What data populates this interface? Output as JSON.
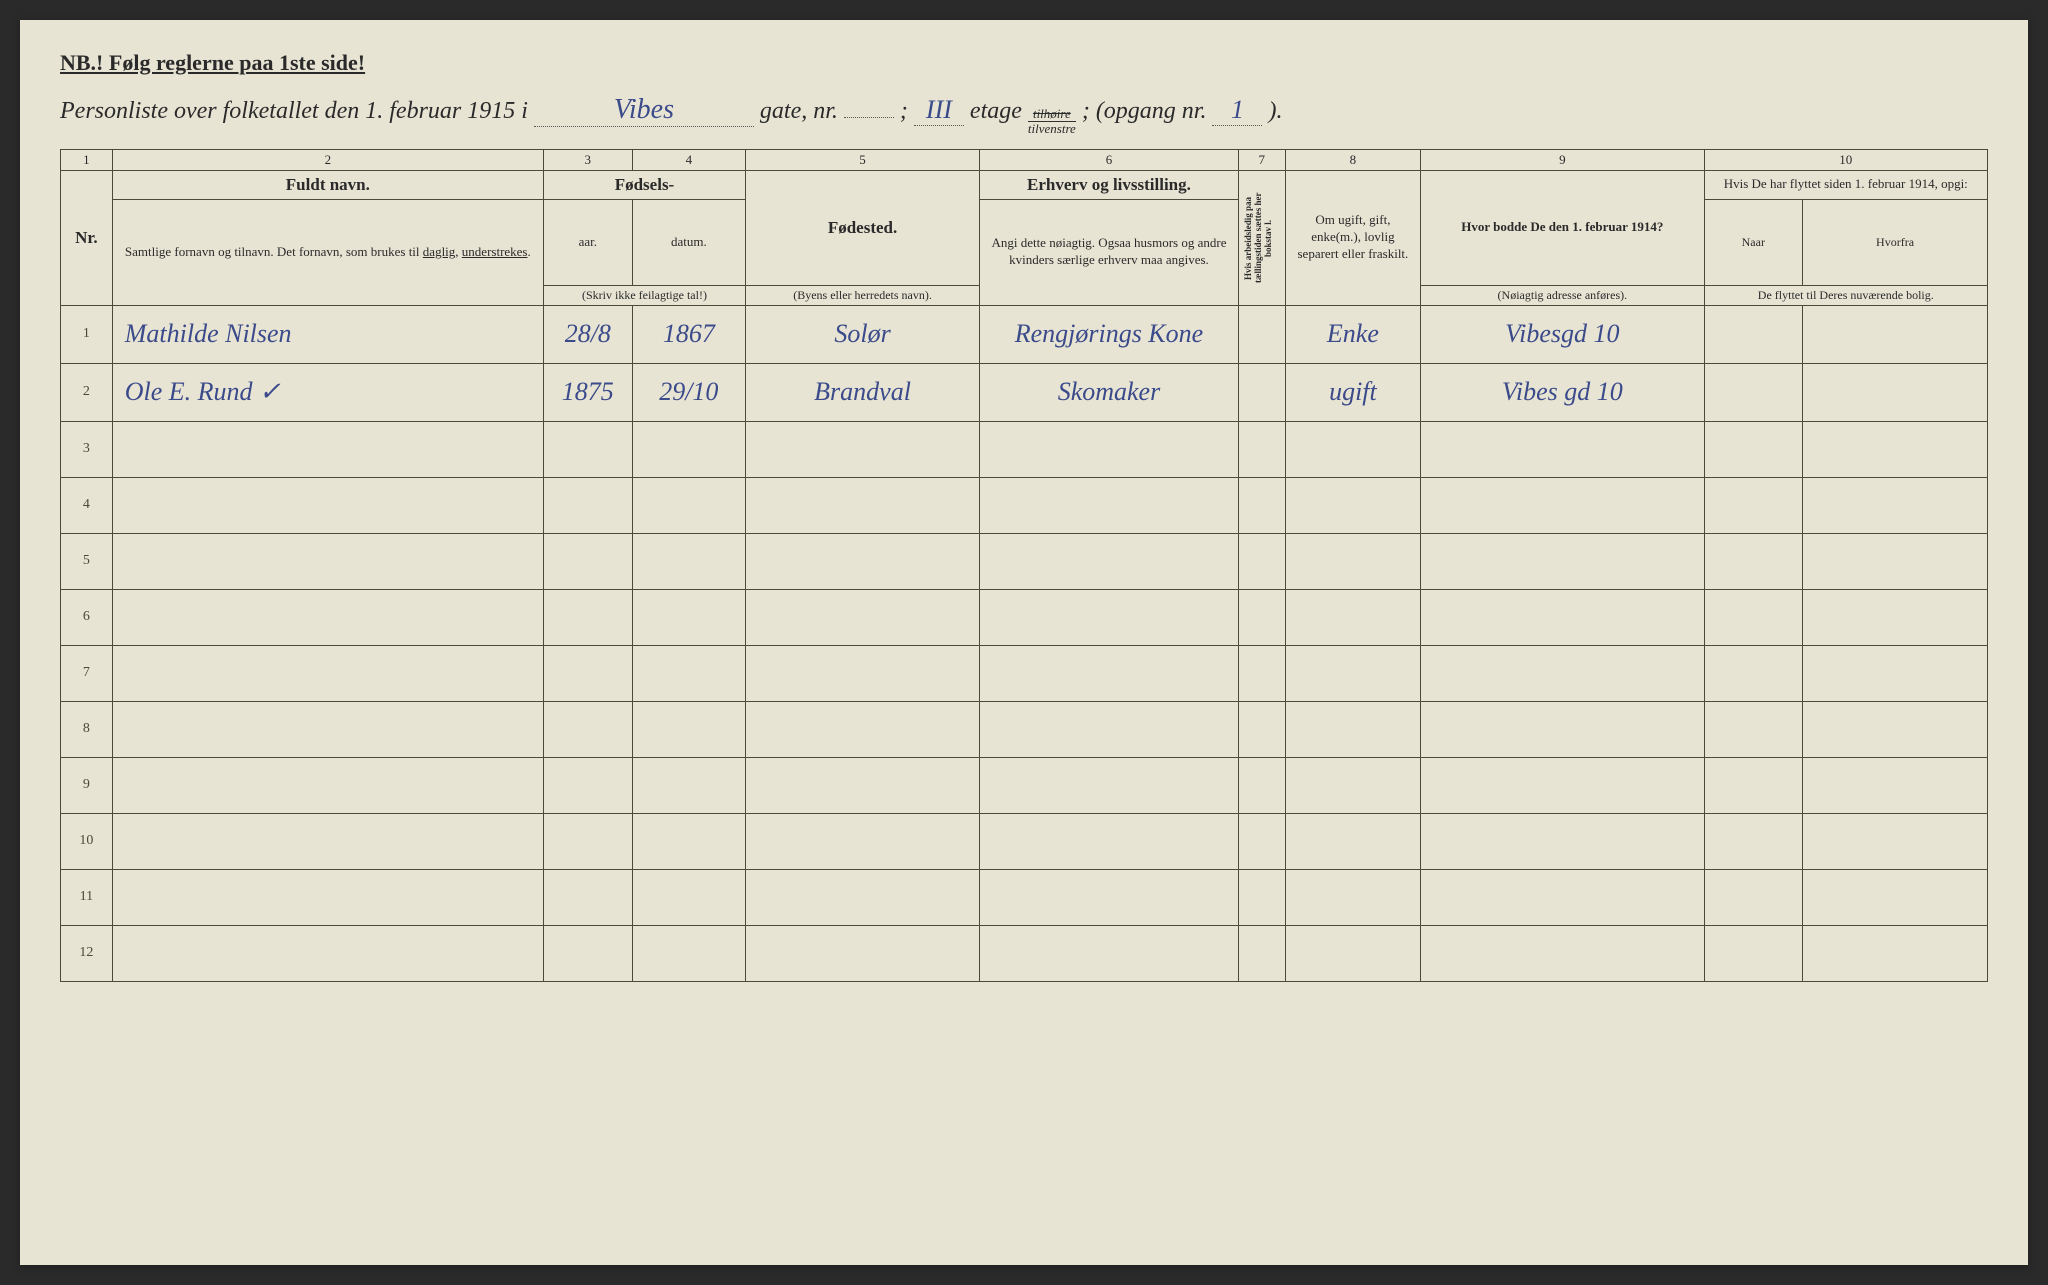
{
  "header_notice": "NB.! Følg reglerne paa 1ste side!",
  "title": {
    "prefix": "Personliste over folketallet den 1. februar 1915 i",
    "street": "Vibes",
    "gate_label": "gate, nr.",
    "gate_nr": "",
    "etage_label": "etage",
    "etage": "III",
    "side_top": "tilhøire",
    "side_bot": "tilvenstre",
    "opgang_label": "(opgang nr.",
    "opgang": "1",
    "close": ")."
  },
  "columns": {
    "c1": "1",
    "c2": "2",
    "c3": "3",
    "c4": "4",
    "c5": "5",
    "c6": "6",
    "c7": "7",
    "c8": "8",
    "c9": "9",
    "c10": "10"
  },
  "headers": {
    "nr": "Nr.",
    "fuldt_navn": "Fuldt navn.",
    "fuldt_sub": "Samtlige fornavn og tilnavn. Det fornavn, som brukes til daglig, understrekes.",
    "fodsels": "Fødsels-",
    "aar": "aar.",
    "datum": "datum.",
    "fodsels_note": "(Skriv ikke feilagtige tal!)",
    "fodested": "Fødested.",
    "fodested_sub": "(Byens eller herredets navn).",
    "erhverv": "Erhverv og livsstilling.",
    "erhverv_sub": "Angi dette nøiagtig. Ogsaa husmors og andre kvinders særlige erhverv maa angives.",
    "col7": "Hvis arbeidsledig paa tællingstiden sættes her bokstav l.",
    "col8": "Om ugift, gift, enke(m.), lovlig separert eller fraskilt.",
    "col9": "Hvor bodde De den 1. februar 1914?",
    "col9_sub": "(Nøiagtig adresse anføres).",
    "col10": "Hvis De har flyttet siden 1. februar 1914, opgi:",
    "col10_naar": "Naar",
    "col10_hvorfra": "Hvorfra",
    "col10_sub": "De flyttet til Deres nuværende bolig."
  },
  "rows": [
    {
      "nr": "1",
      "name": "Mathilde Nilsen",
      "year": "28/8",
      "date": "1867",
      "place": "Solør",
      "occ": "Rengjørings Kone",
      "c7": "",
      "c8": "Enke",
      "c9": "Vibesgd 10",
      "c10a": "",
      "c10b": ""
    },
    {
      "nr": "2",
      "name": "Ole E. Rund ✓",
      "year": "1875",
      "date": "29/10",
      "place": "Brandval",
      "occ": "Skomaker",
      "c7": "",
      "c8": "ugift",
      "c9": "Vibes gd 10",
      "c10a": "",
      "c10b": ""
    }
  ],
  "empty_rows": [
    "3",
    "4",
    "5",
    "6",
    "7",
    "8",
    "9",
    "10",
    "11",
    "12"
  ],
  "colors": {
    "paper": "#e8e4d4",
    "ink_print": "#2a2a2a",
    "ink_handwrite": "#3a4a8a",
    "border": "#4a4a3a"
  }
}
